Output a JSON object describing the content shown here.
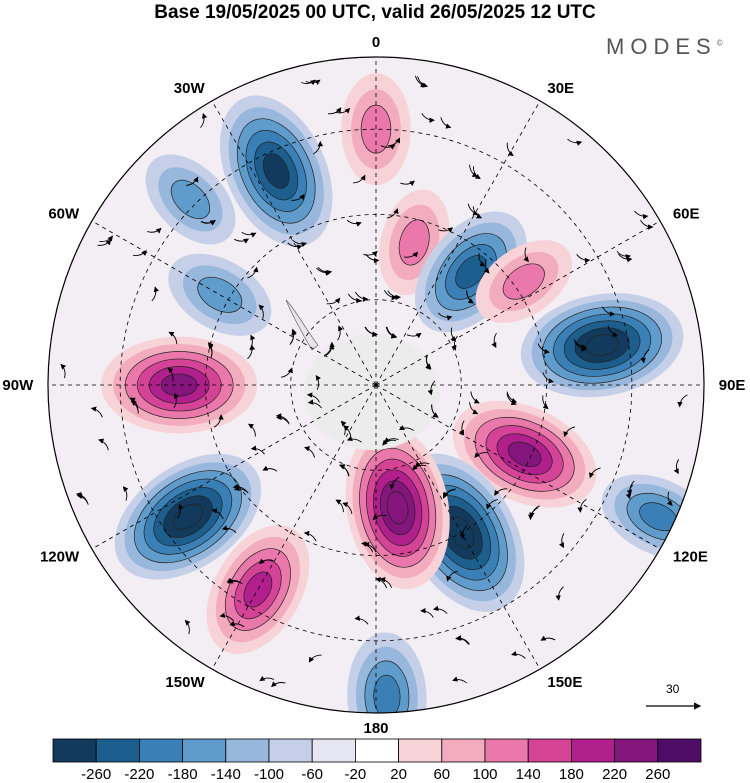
{
  "title": "Base 19/05/2025 00 UTC, valid 26/05/2025 12 UTC",
  "brand": "MODES",
  "brand_mark": "©",
  "map": {
    "projection": "south-polar-stereographic",
    "meridian_labels": [
      {
        "text": "0",
        "lon": 0
      },
      {
        "text": "30E",
        "lon": 30
      },
      {
        "text": "60E",
        "lon": 60
      },
      {
        "text": "90E",
        "lon": 90
      },
      {
        "text": "120E",
        "lon": 120
      },
      {
        "text": "150E",
        "lon": 150
      },
      {
        "text": "180",
        "lon": 180
      },
      {
        "text": "150W",
        "lon": -150
      },
      {
        "text": "120W",
        "lon": -120
      },
      {
        "text": "90W",
        "lon": -90
      },
      {
        "text": "60W",
        "lon": -60
      },
      {
        "text": "30W",
        "lon": -30
      }
    ],
    "anomaly_centers": [
      {
        "sign": "negative",
        "value": -250,
        "lon": -25,
        "lat_frac": 0.72
      },
      {
        "sign": "positive",
        "value": 130,
        "lon": 0,
        "lat_frac": 0.78
      },
      {
        "sign": "positive",
        "value": 120,
        "lon": 15,
        "lat_frac": 0.45
      },
      {
        "sign": "negative",
        "value": -200,
        "lon": 40,
        "lat_frac": 0.45
      },
      {
        "sign": "positive",
        "value": 120,
        "lon": 55,
        "lat_frac": 0.55
      },
      {
        "sign": "negative",
        "value": -260,
        "lon": 80,
        "lat_frac": 0.7
      },
      {
        "sign": "positive",
        "value": 230,
        "lon": 115,
        "lat_frac": 0.5
      },
      {
        "sign": "negative",
        "value": -280,
        "lon": 150,
        "lat_frac": 0.52
      },
      {
        "sign": "positive",
        "value": 260,
        "lon": 170,
        "lat_frac": 0.38
      },
      {
        "sign": "negative",
        "value": -150,
        "lon": 115,
        "lat_frac": 0.95
      },
      {
        "sign": "negative",
        "value": -170,
        "lon": 178,
        "lat_frac": 0.95
      },
      {
        "sign": "positive",
        "value": 200,
        "lon": -150,
        "lat_frac": 0.72
      },
      {
        "sign": "negative",
        "value": -260,
        "lon": -125,
        "lat_frac": 0.7
      },
      {
        "sign": "positive",
        "value": 240,
        "lon": -90,
        "lat_frac": 0.6
      },
      {
        "sign": "negative",
        "value": -130,
        "lon": -60,
        "lat_frac": 0.55
      },
      {
        "sign": "negative",
        "value": -120,
        "lon": -45,
        "lat_frac": 0.8
      }
    ],
    "reference_vector": {
      "value": "30"
    }
  },
  "colorbar": {
    "ticks": [
      "-260",
      "-220",
      "-180",
      "-140",
      "-100",
      "-60",
      "-20",
      "20",
      "60",
      "100",
      "140",
      "180",
      "220",
      "260"
    ],
    "colors": [
      "#123a5c",
      "#1c5f8f",
      "#3a7fb5",
      "#5f9ccb",
      "#97b7dc",
      "#c5d0e8",
      "#e6e6f2",
      "#ffffff",
      "#f7d2d6",
      "#f3abbe",
      "#ea78ab",
      "#d54397",
      "#b11f8d",
      "#84157c",
      "#4f0c67"
    ],
    "negative_colors": [
      "#123a5c",
      "#1c5f8f",
      "#3a7fb5",
      "#5f9ccb",
      "#97b7dc",
      "#c5d0e8",
      "#e6e6f2"
    ],
    "positive_colors": [
      "#f7d2d6",
      "#f3abbe",
      "#ea78ab",
      "#d54397",
      "#b11f8d",
      "#84157c",
      "#4f0c67"
    ]
  }
}
